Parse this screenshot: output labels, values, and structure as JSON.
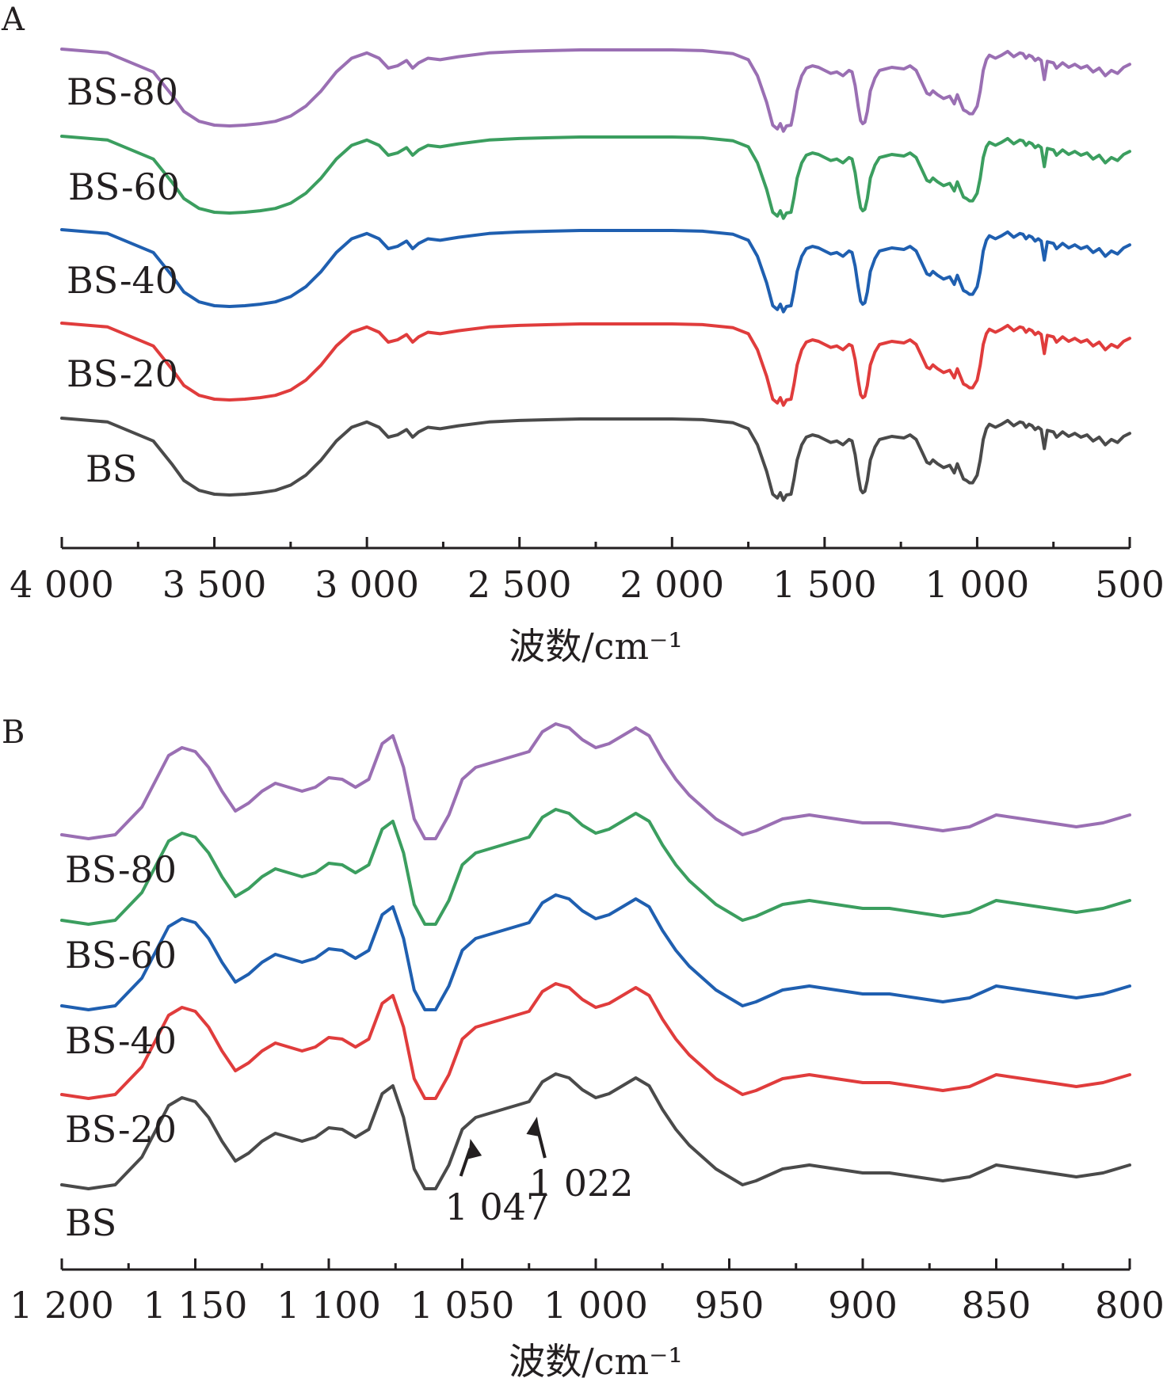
{
  "chart_data": [
    {
      "type": "line",
      "panel": "A",
      "xlabel": "波数/cm⁻¹",
      "ylabel": "",
      "xlim": [
        4000,
        500
      ],
      "x_reversed": true,
      "xticks": [
        {
          "value": 4000,
          "label": "4 000"
        },
        {
          "value": 3500,
          "label": "3 500"
        },
        {
          "value": 3000,
          "label": "3 000"
        },
        {
          "value": 2500,
          "label": "2 500"
        },
        {
          "value": 2000,
          "label": "2 000"
        },
        {
          "value": 1500,
          "label": "1 500"
        },
        {
          "value": 1000,
          "label": "1 000"
        },
        {
          "value": 500,
          "label": "500"
        }
      ],
      "x": [
        4000,
        3850,
        3700,
        3640,
        3600,
        3550,
        3500,
        3450,
        3400,
        3350,
        3300,
        3250,
        3200,
        3150,
        3100,
        3050,
        3000,
        2960,
        2930,
        2900,
        2870,
        2850,
        2830,
        2800,
        2760,
        2700,
        2600,
        2500,
        2400,
        2300,
        2200,
        2100,
        2000,
        1900,
        1800,
        1750,
        1720,
        1690,
        1670,
        1655,
        1645,
        1635,
        1625,
        1610,
        1600,
        1590,
        1575,
        1560,
        1540,
        1520,
        1500,
        1480,
        1460,
        1440,
        1420,
        1410,
        1400,
        1390,
        1382,
        1375,
        1368,
        1360,
        1350,
        1335,
        1320,
        1300,
        1280,
        1260,
        1240,
        1220,
        1200,
        1180,
        1165,
        1155,
        1145,
        1130,
        1110,
        1090,
        1075,
        1065,
        1055,
        1045,
        1035,
        1025,
        1015,
        1000,
        990,
        980,
        970,
        960,
        940,
        920,
        900,
        880,
        860,
        850,
        840,
        830,
        820,
        810,
        800,
        790,
        780,
        770,
        750,
        740,
        720,
        700,
        680,
        660,
        640,
        620,
        600,
        580,
        560,
        540,
        520,
        500
      ],
      "base": [
        0,
        -5,
        -30,
        -60,
        -82,
        -95,
        -100,
        -101,
        -100,
        -98,
        -95,
        -88,
        -75,
        -55,
        -30,
        -12,
        -5,
        -12,
        -25,
        -22,
        -15,
        -25,
        -18,
        -12,
        -14,
        -10,
        -5,
        -3,
        -2,
        -1,
        -1,
        -1,
        -1,
        -2,
        -6,
        -14,
        -35,
        -70,
        -100,
        -105,
        -98,
        -108,
        -101,
        -100,
        -80,
        -55,
        -35,
        -25,
        -22,
        -24,
        -28,
        -32,
        -30,
        -35,
        -28,
        -30,
        -48,
        -75,
        -94,
        -98,
        -96,
        -82,
        -55,
        -38,
        -28,
        -26,
        -24,
        -25,
        -26,
        -22,
        -28,
        -45,
        -58,
        -60,
        -55,
        -60,
        -65,
        -62,
        -72,
        -60,
        -70,
        -80,
        -82,
        -85,
        -85,
        -75,
        -55,
        -28,
        -14,
        -8,
        -12,
        -8,
        -3,
        -10,
        -5,
        -6,
        -12,
        -8,
        -10,
        -15,
        -12,
        -15,
        -40,
        -16,
        -18,
        -25,
        -18,
        -24,
        -20,
        -25,
        -22,
        -30,
        -25,
        -35,
        -28,
        -32,
        -24,
        -20
      ],
      "series": [
        {
          "name": "BS-80",
          "color": "#9a6fb3",
          "amp": 1.0,
          "noise": 0.3
        },
        {
          "name": "BS-60",
          "color": "#3b9e5f",
          "amp": 1.0,
          "noise": 1.0
        },
        {
          "name": "BS-40",
          "color": "#1f5fb0",
          "amp": 1.0,
          "noise": 1.0
        },
        {
          "name": "BS-20",
          "color": "#e03c3c",
          "amp": 1.0,
          "noise": 1.0
        },
        {
          "name": "BS",
          "color": "#4a4a4a",
          "amp": 1.0,
          "noise": 0.5
        }
      ]
    },
    {
      "type": "line",
      "panel": "B",
      "xlabel": "波数/cm⁻¹",
      "ylabel": "",
      "xlim": [
        1200,
        800
      ],
      "x_reversed": true,
      "xticks": [
        {
          "value": 1200,
          "label": "1 200"
        },
        {
          "value": 1150,
          "label": "1 150"
        },
        {
          "value": 1100,
          "label": "1 100"
        },
        {
          "value": 1050,
          "label": "1 050"
        },
        {
          "value": 1000,
          "label": "1 000"
        },
        {
          "value": 950,
          "label": "950"
        },
        {
          "value": 900,
          "label": "900"
        },
        {
          "value": 850,
          "label": "850"
        },
        {
          "value": 800,
          "label": "800"
        }
      ],
      "x": [
        1200,
        1190,
        1180,
        1170,
        1160,
        1155,
        1150,
        1145,
        1140,
        1135,
        1130,
        1125,
        1120,
        1115,
        1110,
        1105,
        1100,
        1095,
        1090,
        1085,
        1080,
        1076,
        1072,
        1068,
        1064,
        1060,
        1055,
        1050,
        1045,
        1040,
        1035,
        1030,
        1025,
        1020,
        1015,
        1010,
        1005,
        1000,
        995,
        990,
        985,
        980,
        975,
        970,
        965,
        960,
        955,
        950,
        945,
        940,
        930,
        920,
        910,
        900,
        890,
        880,
        870,
        860,
        850,
        840,
        830,
        820,
        810,
        800
      ],
      "base": [
        0,
        -5,
        0,
        35,
        100,
        110,
        105,
        85,
        55,
        30,
        40,
        55,
        65,
        60,
        55,
        60,
        72,
        70,
        60,
        70,
        115,
        125,
        85,
        20,
        -5,
        -5,
        25,
        70,
        85,
        90,
        95,
        100,
        105,
        130,
        140,
        135,
        120,
        110,
        115,
        125,
        135,
        125,
        95,
        70,
        50,
        35,
        20,
        10,
        0,
        5,
        20,
        25,
        20,
        15,
        15,
        10,
        5,
        10,
        25,
        20,
        15,
        10,
        15,
        25
      ],
      "series": [
        {
          "name": "BS-80",
          "color": "#9a6fb3",
          "amp": 1.0
        },
        {
          "name": "BS-60",
          "color": "#3b9e5f",
          "amp": 1.0
        },
        {
          "name": "BS-40",
          "color": "#1f5fb0",
          "amp": 1.0
        },
        {
          "name": "BS-20",
          "color": "#e03c3c",
          "amp": 1.0
        },
        {
          "name": "BS",
          "color": "#4a4a4a",
          "amp": 1.0
        }
      ],
      "annotations": [
        {
          "label": "1 047",
          "x": 1047
        },
        {
          "label": "1 022",
          "x": 1022
        }
      ]
    }
  ]
}
